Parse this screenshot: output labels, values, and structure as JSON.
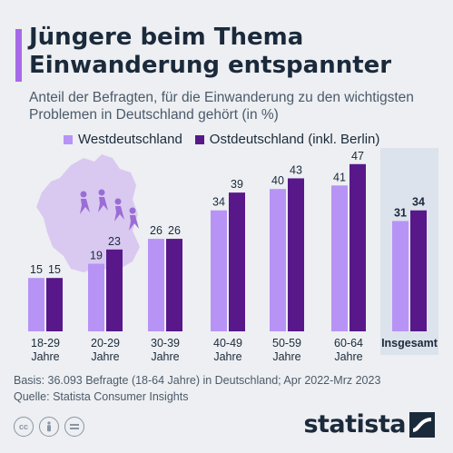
{
  "title": "Jüngere beim Thema Einwanderung entspannter",
  "subtitle": "Anteil der Befragten, für die Einwanderung zu den wichtigsten Problemen in Deutschland gehört (in %)",
  "legend": [
    {
      "label": "Westdeutschland",
      "color": "#b793f5"
    },
    {
      "label": "Ostdeutschland (inkl. Berlin)",
      "color": "#58188a"
    }
  ],
  "chart_data": {
    "type": "bar",
    "categories": [
      [
        "18-29",
        "Jahre"
      ],
      [
        "20-29",
        "Jahre"
      ],
      [
        "30-39",
        "Jahre"
      ],
      [
        "40-49",
        "Jahre"
      ],
      [
        "50-59",
        "Jahre"
      ],
      [
        "60-64",
        "Jahre"
      ],
      [
        "Insgesamt"
      ]
    ],
    "series": [
      {
        "name": "Westdeutschland",
        "color": "#b793f5",
        "values": [
          15,
          19,
          26,
          34,
          40,
          41,
          31
        ]
      },
      {
        "name": "Ostdeutschland (inkl. Berlin)",
        "color": "#58188a",
        "values": [
          15,
          23,
          26,
          39,
          43,
          47,
          34
        ]
      }
    ],
    "ylim": [
      0,
      50
    ],
    "highlight_category": "Insgesamt",
    "highlight_color": "#dde3ec"
  },
  "footnote": {
    "basis": "Basis: 36.093 Befragte (18-64 Jahre) in Deutschland; Apr 2022-Mrz 2023",
    "source": "Quelle: Statista Consumer Insights"
  },
  "license_icons": [
    "cc-icon",
    "by-icon",
    "nd-icon"
  ],
  "logo": "statista"
}
